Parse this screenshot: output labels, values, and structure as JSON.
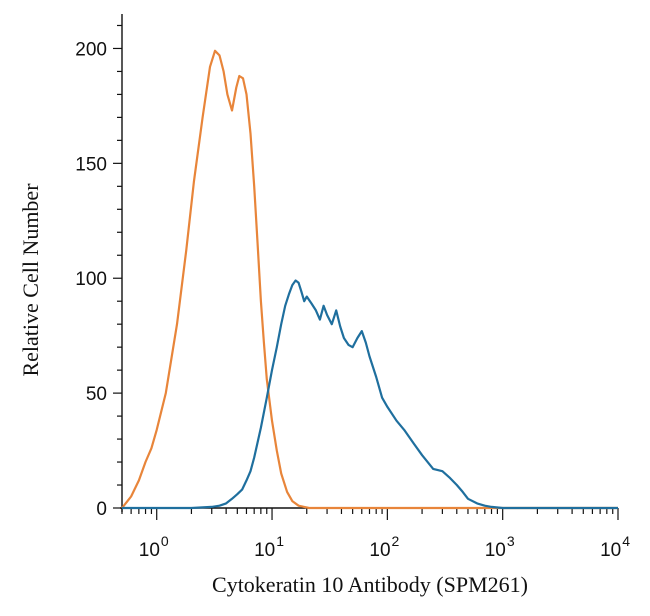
{
  "chart_data": {
    "type": "line",
    "title": "",
    "xlabel": "Cytokeratin 10 Antibody (SPM261)",
    "ylabel": "Relative Cell Number",
    "xscale": "log",
    "xlim": [
      0.5,
      10000
    ],
    "ylim": [
      0,
      215
    ],
    "grid": false,
    "legend": "none",
    "x_ticks": [
      {
        "value": 1,
        "base": "10",
        "exp": "0"
      },
      {
        "value": 10,
        "base": "10",
        "exp": "1"
      },
      {
        "value": 100,
        "base": "10",
        "exp": "2"
      },
      {
        "value": 1000,
        "base": "10",
        "exp": "3"
      },
      {
        "value": 10000,
        "base": "10",
        "exp": "4"
      }
    ],
    "y_ticks": [
      "0",
      "50",
      "100",
      "150",
      "200"
    ],
    "series": [
      {
        "color": "#e8853a",
        "x": [
          0.5,
          0.6,
          0.7,
          0.8,
          0.9,
          1.0,
          1.2,
          1.5,
          1.8,
          2.1,
          2.5,
          2.9,
          3.2,
          3.5,
          3.8,
          4.1,
          4.5,
          4.9,
          5.2,
          5.6,
          6.0,
          6.5,
          7.0,
          7.5,
          8.0,
          8.5,
          9.0,
          10.0,
          11.0,
          12.0,
          13.5,
          15.0,
          17.0,
          19.0,
          21.0,
          25.0,
          30.0,
          40.0,
          60.0,
          100.0,
          1000.0,
          10000.0
        ],
        "y": [
          0,
          5,
          12,
          20,
          26,
          34,
          50,
          80,
          112,
          142,
          170,
          192,
          199,
          197,
          190,
          180,
          173,
          183,
          188,
          187,
          180,
          163,
          140,
          115,
          90,
          72,
          56,
          38,
          25,
          15,
          7,
          3,
          1,
          0.5,
          0,
          0,
          0,
          0,
          0,
          0,
          0,
          0
        ]
      },
      {
        "color": "#1f6f9e",
        "x": [
          0.5,
          1.0,
          2.0,
          3.0,
          3.5,
          4.0,
          4.5,
          5.0,
          5.5,
          6.0,
          6.5,
          7.0,
          8.0,
          9.0,
          10.0,
          11.0,
          12.0,
          13.0,
          14.0,
          15.0,
          16.0,
          17.0,
          18.0,
          19.0,
          20.0,
          22.0,
          24.0,
          26.0,
          28.0,
          30.0,
          33.0,
          36.0,
          39.0,
          42.0,
          46.0,
          50.0,
          55.0,
          60.0,
          65.0,
          70.0,
          80.0,
          90.0,
          100.0,
          120.0,
          140.0,
          170.0,
          200.0,
          250.0,
          300.0,
          350.0,
          400.0,
          450.0,
          500.0,
          600.0,
          700.0,
          800.0,
          1000.0,
          10000.0
        ],
        "y": [
          0,
          0,
          0,
          0.5,
          1,
          2,
          4,
          6,
          8,
          12,
          16,
          22,
          35,
          48,
          60,
          70,
          80,
          88,
          93,
          97,
          99,
          98,
          94,
          90,
          92,
          89,
          86,
          82,
          88,
          84,
          80,
          86,
          79,
          74,
          71,
          70,
          74,
          77,
          72,
          66,
          57,
          48,
          44,
          38,
          34,
          28,
          23,
          17,
          16,
          13,
          10,
          7,
          4,
          2,
          1,
          0.5,
          0,
          0
        ]
      }
    ]
  }
}
